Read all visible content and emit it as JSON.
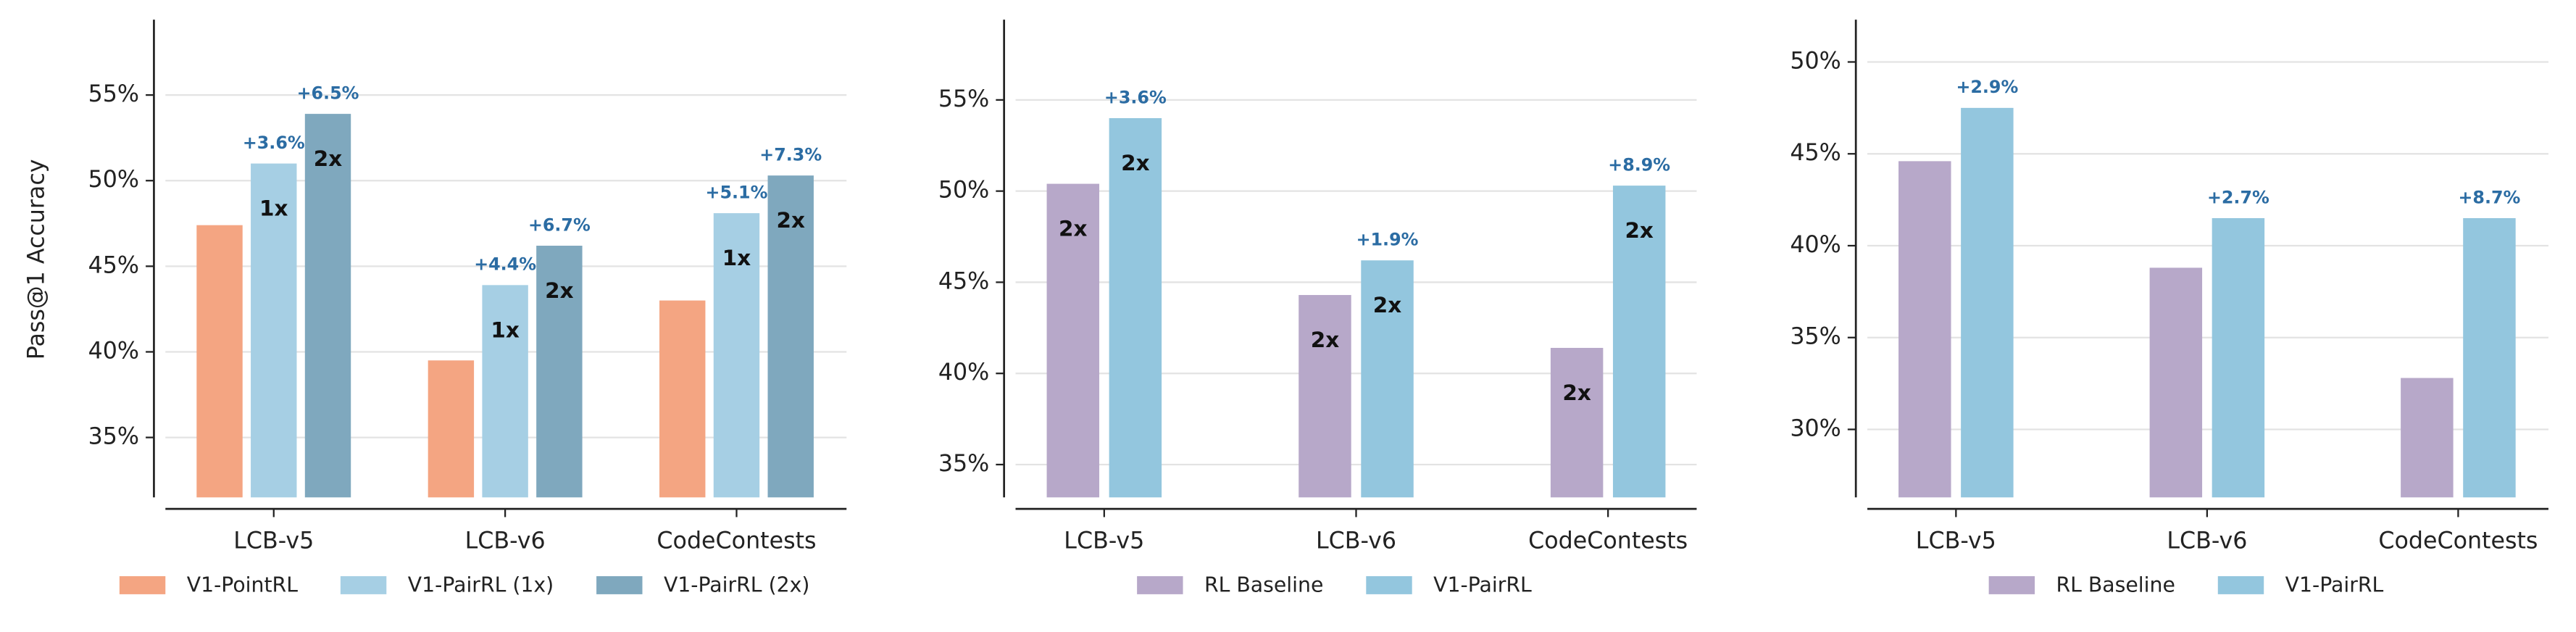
{
  "chart_data": [
    {
      "type": "bar",
      "ylabel": "Pass@1 Accuracy",
      "categories": [
        "LCB-v5",
        "LCB-v6",
        "CodeContests"
      ],
      "series": [
        {
          "name": "V1-PointRL",
          "color": "#f4a582",
          "values": [
            47.4,
            39.5,
            43.0
          ]
        },
        {
          "name": "V1-PairRL (1x)",
          "color": "#a6cfe4",
          "values": [
            51.0,
            43.9,
            48.1
          ],
          "gain_labels": [
            "+3.6%",
            "+4.4%",
            "+5.1%"
          ],
          "bar_labels": [
            "1x",
            "1x",
            "1x"
          ]
        },
        {
          "name": "V1-PairRL (2x)",
          "color": "#7fa8be",
          "values": [
            53.9,
            46.2,
            50.3
          ],
          "gain_labels": [
            "+6.5%",
            "+6.7%",
            "+7.3%"
          ],
          "bar_labels": [
            "2x",
            "2x",
            "2x"
          ]
        }
      ],
      "ylim": [
        31.5,
        59.4
      ],
      "yticks": [
        {
          "value": 35,
          "label": "35%"
        },
        {
          "value": 40,
          "label": "40%"
        },
        {
          "value": 45,
          "label": "45%"
        },
        {
          "value": 50,
          "label": "50%"
        },
        {
          "value": 55,
          "label": "55%"
        }
      ],
      "grid": true
    },
    {
      "type": "bar",
      "categories": [
        "LCB-v5",
        "LCB-v6",
        "CodeContests"
      ],
      "series": [
        {
          "name": "RL Baseline",
          "color": "#b7a8c9",
          "values": [
            50.4,
            44.3,
            41.4
          ],
          "bar_labels": [
            "2x",
            "2x",
            "2x"
          ]
        },
        {
          "name": "V1-PairRL",
          "color": "#93c6de",
          "values": [
            54.0,
            46.2,
            50.3
          ],
          "gain_labels": [
            "+3.6%",
            "+1.9%",
            "+8.9%"
          ],
          "bar_labels": [
            "2x",
            "2x",
            "2x"
          ]
        }
      ],
      "ylim": [
        33.2,
        59.4
      ],
      "yticks": [
        {
          "value": 35,
          "label": "35%"
        },
        {
          "value": 40,
          "label": "40%"
        },
        {
          "value": 45,
          "label": "45%"
        },
        {
          "value": 50,
          "label": "50%"
        },
        {
          "value": 55,
          "label": "55%"
        }
      ],
      "grid": true
    },
    {
      "type": "bar",
      "categories": [
        "LCB-v5",
        "LCB-v6",
        "CodeContests"
      ],
      "series": [
        {
          "name": "RL Baseline",
          "color": "#b7a8c9",
          "values": [
            44.6,
            38.8,
            32.8
          ]
        },
        {
          "name": "V1-PairRL",
          "color": "#93c6de",
          "values": [
            47.5,
            41.5,
            41.5
          ],
          "gain_labels": [
            "+2.9%",
            "+2.7%",
            "+8.7%"
          ]
        }
      ],
      "ylim": [
        26.3,
        52.3
      ],
      "yticks": [
        {
          "value": 30,
          "label": "30%"
        },
        {
          "value": 35,
          "label": "35%"
        },
        {
          "value": 40,
          "label": "40%"
        },
        {
          "value": 45,
          "label": "45%"
        },
        {
          "value": 50,
          "label": "50%"
        }
      ],
      "grid": true
    }
  ]
}
